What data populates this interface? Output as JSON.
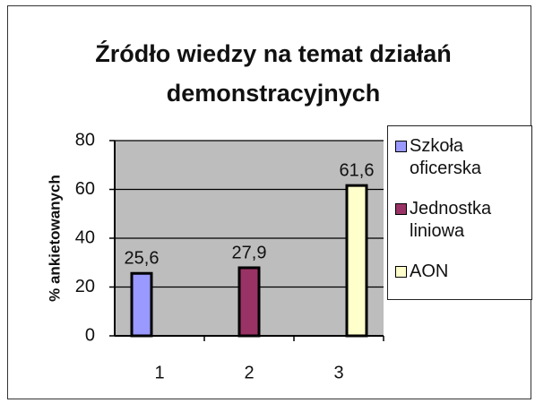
{
  "chart_data": {
    "type": "bar",
    "title": "Źródło wiedzy na temat działań demonstracyjnych",
    "y_label": "% ankietowanych",
    "categories": [
      "1",
      "2",
      "3"
    ],
    "series": [
      {
        "name": "Szkoła oficerska",
        "color": "#9999ff",
        "values": [
          25.6,
          null,
          null
        ],
        "value_labels": [
          "25,6",
          null,
          null
        ]
      },
      {
        "name": "Jednostka liniowa",
        "color": "#993366",
        "values": [
          null,
          27.9,
          null
        ],
        "value_labels": [
          null,
          "27,9",
          null
        ]
      },
      {
        "name": "AON",
        "color": "#ffffcc",
        "values": [
          null,
          null,
          61.6
        ],
        "value_labels": [
          null,
          null,
          "61,6"
        ]
      }
    ],
    "ylim": [
      0,
      80
    ],
    "yticks": [
      0,
      20,
      40,
      60,
      80
    ],
    "grid": true,
    "legend": "right"
  }
}
